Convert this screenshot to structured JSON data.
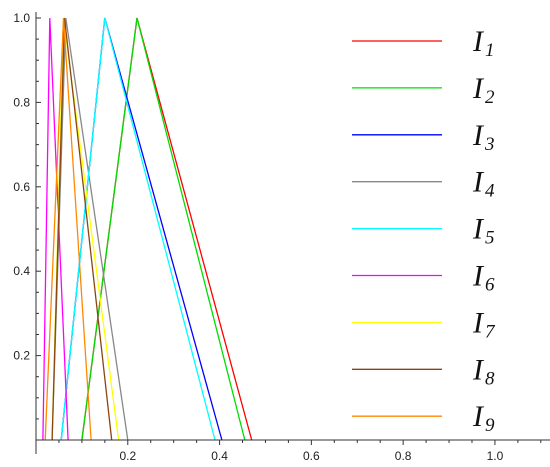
{
  "chart_data": {
    "type": "line",
    "title": "",
    "xlabel": "",
    "ylabel": "",
    "xlim": [
      0,
      1.12
    ],
    "ylim": [
      0,
      1.0
    ],
    "grid": false,
    "legend_position": "right",
    "x_ticks": [
      {
        "value": 0.2,
        "label": "0.2"
      },
      {
        "value": 0.4,
        "label": "0.4"
      },
      {
        "value": 0.6,
        "label": "0.6"
      },
      {
        "value": 0.8,
        "label": "0.8"
      },
      {
        "value": 1.0,
        "label": "1.0"
      }
    ],
    "y_ticks": [
      {
        "value": 0.2,
        "label": "0.2"
      },
      {
        "value": 0.4,
        "label": "0.4"
      },
      {
        "value": 0.6,
        "label": "0.6"
      },
      {
        "value": 0.8,
        "label": "0.8"
      },
      {
        "value": 1.0,
        "label": "1.0"
      }
    ],
    "series": [
      {
        "name": "I1",
        "label_main": "I",
        "label_sub": "1",
        "color": "#ff0000",
        "points": [
          [
            0.1,
            0
          ],
          [
            0.22,
            1.0
          ],
          [
            0.47,
            0
          ]
        ]
      },
      {
        "name": "I2",
        "label_main": "I",
        "label_sub": "2",
        "color": "#00dd00",
        "points": [
          [
            0.1,
            0
          ],
          [
            0.22,
            1.0
          ],
          [
            0.455,
            0
          ]
        ]
      },
      {
        "name": "I3",
        "label_main": "I",
        "label_sub": "3",
        "color": "#0000ff",
        "points": [
          [
            0.055,
            0
          ],
          [
            0.15,
            1.0
          ],
          [
            0.405,
            0
          ]
        ]
      },
      {
        "name": "I4",
        "label_main": "I",
        "label_sub": "4",
        "color": "#888888",
        "points": [
          [
            0.035,
            0
          ],
          [
            0.065,
            1.0
          ],
          [
            0.2,
            0
          ]
        ]
      },
      {
        "name": "I5",
        "label_main": "I",
        "label_sub": "5",
        "color": "#00ffff",
        "points": [
          [
            0.055,
            0
          ],
          [
            0.15,
            1.0
          ],
          [
            0.39,
            0
          ]
        ]
      },
      {
        "name": "I6",
        "label_main": "I",
        "label_sub": "6",
        "color": "#ff00ff",
        "points": [
          [
            0.015,
            0
          ],
          [
            0.03,
            1.0
          ],
          [
            0.07,
            0
          ]
        ]
      },
      {
        "name": "I7",
        "label_main": "I",
        "label_sub": "7",
        "color": "#ffff00",
        "points": [
          [
            0.035,
            0
          ],
          [
            0.06,
            1.0
          ],
          [
            0.18,
            0
          ]
        ]
      },
      {
        "name": "I8",
        "label_main": "I",
        "label_sub": "8",
        "color": "#8b4513",
        "points": [
          [
            0.035,
            0
          ],
          [
            0.062,
            1.0
          ],
          [
            0.165,
            0
          ]
        ]
      },
      {
        "name": "I9",
        "label_main": "I",
        "label_sub": "9",
        "color": "#ff8800",
        "points": [
          [
            0.02,
            0
          ],
          [
            0.06,
            1.0
          ],
          [
            0.12,
            0
          ]
        ]
      }
    ]
  }
}
